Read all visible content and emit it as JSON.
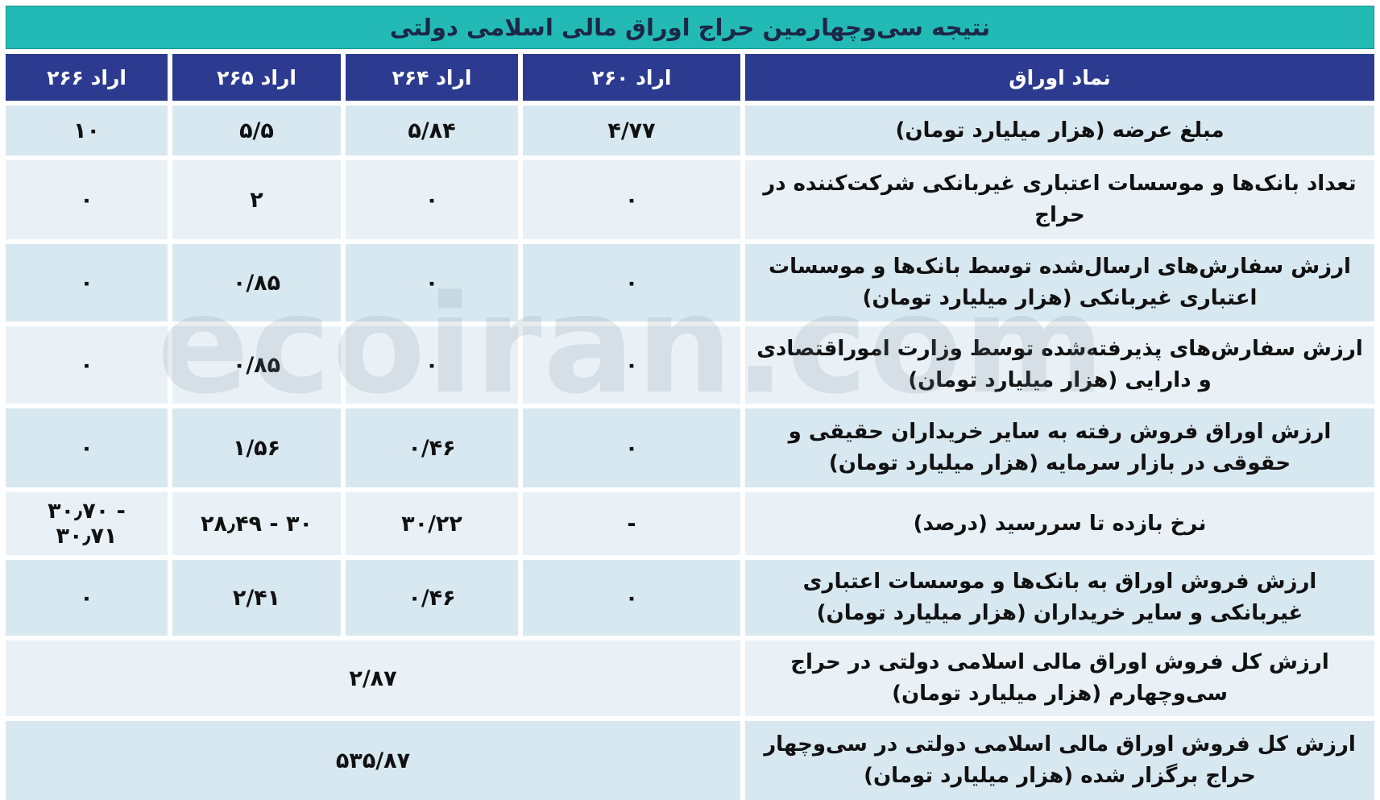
{
  "title": "نتیجه سی‌وچهارمین حراج اوراق مالی اسلامی دولتی",
  "watermark": "ecoiran.com",
  "colors": {
    "title_bg": "#23bab5",
    "header_bg": "#2c3b8f",
    "row_dark": "#d8e8f0",
    "row_light": "#e9f1f6",
    "title_text": "#1c2747",
    "header_text": "#ffffff"
  },
  "table": {
    "columns": [
      "نماد اوراق",
      "اراد ۲۶۰",
      "اراد ۲۶۴",
      "اراد ۲۶۵",
      "اراد ۲۶۶"
    ],
    "rows": [
      {
        "label": "مبلغ عرضه (هزار میلیارد تومان)",
        "values": [
          "۴/۷۷",
          "۵/۸۴",
          "۵/۵",
          "۱۰"
        ]
      },
      {
        "label": "تعداد بانک‌ها و موسسات اعتباری غیربانکی شرکت‌کننده در حراج",
        "values": [
          "۰",
          "۰",
          "۲",
          "۰"
        ]
      },
      {
        "label": "ارزش سفارش‌های ارسال‌شده توسط بانک‌ها و موسسات اعتباری غیربانکی (هزار میلیارد تومان)",
        "values": [
          "۰",
          "۰",
          "۰/۸۵",
          "۰"
        ]
      },
      {
        "label": "ارزش سفارش‌های پذیرفته‌شده توسط وزارت اموراقتصادی و دارایی (هزار میلیارد تومان)",
        "values": [
          "۰",
          "۰",
          "۰/۸۵",
          "۰"
        ]
      },
      {
        "label": "ارزش اوراق فروش رفته به سایر خریداران حقیقی و حقوقی در بازار سرمایه (هزار میلیارد تومان)",
        "values": [
          "۰",
          "۰/۴۶",
          "۱/۵۶",
          "۰"
        ]
      },
      {
        "label": "نرخ بازده تا سررسید (درصد)",
        "values": [
          "-",
          "۳۰/۲۲",
          "۲۸٫۴۹ - ۳۰",
          "۳۰٫۷۰ - ۳۰٫۷۱"
        ]
      },
      {
        "label": "ارزش فروش اوراق به بانک‌ها و موسسات اعتباری غیربانکی و سایر خریداران (هزار میلیارد تومان)",
        "values": [
          "۰",
          "۰/۴۶",
          "۲/۴۱",
          "۰"
        ]
      }
    ],
    "merged_rows": [
      {
        "label": "ارزش کل فروش اوراق مالی اسلامی دولتی در حراج سی‌وچهارم (هزار میلیارد تومان)",
        "value": "۲/۸۷"
      },
      {
        "label": "ارزش کل فروش اوراق مالی اسلامی دولتی در سی‌وچهار حراج برگزار شده (هزار میلیارد تومان)",
        "value": "۵۳۵/۸۷"
      }
    ]
  }
}
